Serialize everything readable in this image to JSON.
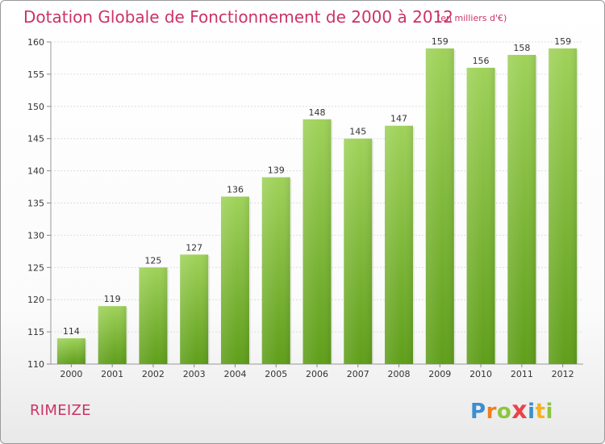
{
  "title": "Dotation Globale de Fonctionnement de 2000 à 2012",
  "subtitle": "(en milliers d'€)",
  "commune": "RIMEIZE",
  "logo": {
    "letters": [
      "P",
      "r",
      "o",
      "x",
      "i",
      "t",
      "i"
    ],
    "colors": [
      "#3a8fd0",
      "#f07f1d",
      "#8cc63f",
      "#e8434b",
      "#3a8fd0",
      "#f7b21f",
      "#8cc63f"
    ]
  },
  "chart_data": {
    "type": "bar",
    "title": "Dotation Globale de Fonctionnement de 2000 à 2012",
    "subtitle": "(en milliers d'€)",
    "categories": [
      "2000",
      "2001",
      "2002",
      "2003",
      "2004",
      "2005",
      "2006",
      "2007",
      "2008",
      "2009",
      "2010",
      "2011",
      "2012"
    ],
    "values": [
      114,
      119,
      125,
      127,
      136,
      139,
      148,
      145,
      147,
      159,
      156,
      158,
      159
    ],
    "ylim": [
      110,
      160
    ],
    "yticks": [
      110,
      115,
      120,
      125,
      130,
      135,
      140,
      145,
      150,
      155,
      160
    ],
    "grid": true,
    "bar_color_top": "#9fd25a",
    "bar_color_bottom": "#5f9e1a"
  }
}
